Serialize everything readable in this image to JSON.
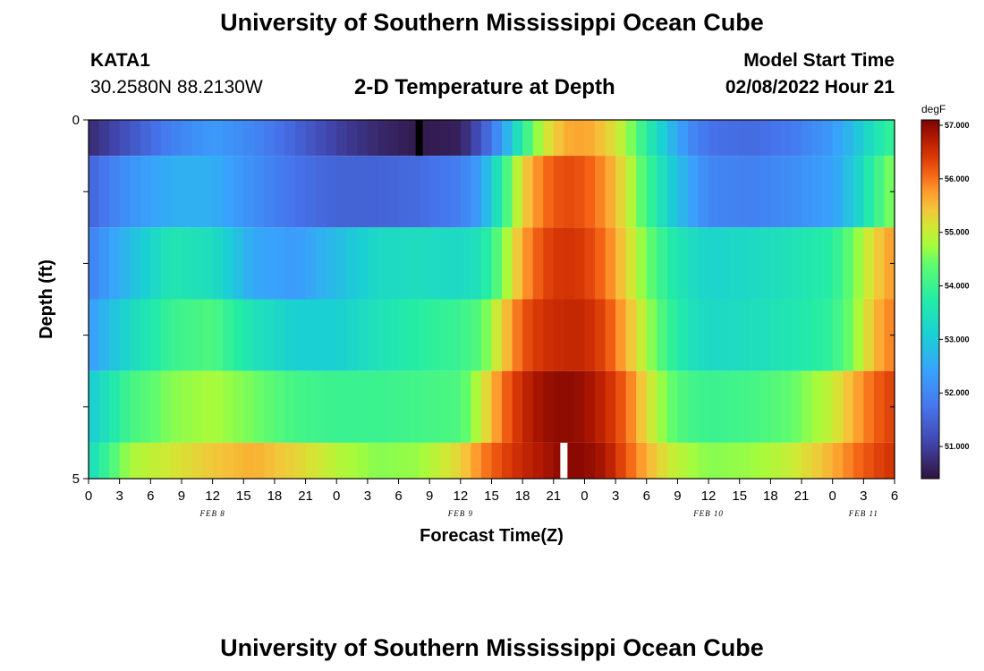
{
  "header": {
    "title": "University of Southern Mississippi Ocean Cube",
    "station": "KATA1",
    "coords": "30.2580N  88.2130W",
    "subtitle": "2-D Temperature at Depth",
    "model_label": "Model Start Time",
    "model_date": "02/08/2022 Hour 21"
  },
  "footer": {
    "title": "University of Southern Mississippi Ocean Cube"
  },
  "chart_data": {
    "type": "heatmap",
    "title": "2-D Temperature at Depth",
    "xlabel": "Forecast Time(Z)",
    "ylabel": "Depth (ft)",
    "x_range_hours": [
      0,
      78
    ],
    "x_tick_labels": [
      "0",
      "3",
      "6",
      "9",
      "12",
      "15",
      "18",
      "21",
      "0",
      "3",
      "6",
      "9",
      "12",
      "15",
      "18",
      "21",
      "0",
      "3",
      "6",
      "9",
      "12",
      "15",
      "18",
      "21",
      "0",
      "3",
      "6"
    ],
    "date_labels": [
      {
        "label": "FEB 8",
        "hour": 12
      },
      {
        "label": "FEB 9",
        "hour": 36
      },
      {
        "label": "FEB 10",
        "hour": 60
      },
      {
        "label": "FEB 11",
        "hour": 75
      }
    ],
    "y_tick_labels": [
      "0",
      "5"
    ],
    "depth_range_ft": [
      0,
      5
    ],
    "colorbar": {
      "unit": "degF",
      "min": 50.4,
      "max": 57.1,
      "tick_values": [
        51,
        52,
        53,
        54,
        55,
        56,
        57
      ],
      "tick_labels": [
        "51.000",
        "52.000",
        "53.000",
        "54.000",
        "55.000",
        "56.000",
        "57.000"
      ]
    },
    "layers": [
      {
        "depth_top": 0.0,
        "depth_bottom": 0.5,
        "temps": [
          [
            0,
            50.7
          ],
          [
            4,
            51.3
          ],
          [
            8,
            51.9
          ],
          [
            12,
            52.3
          ],
          [
            16,
            52.0
          ],
          [
            20,
            51.5
          ],
          [
            24,
            51.0
          ],
          [
            28,
            50.7
          ],
          [
            32,
            50.5
          ],
          [
            36,
            50.6
          ],
          [
            38,
            51.3
          ],
          [
            40,
            52.3
          ],
          [
            42,
            53.8
          ],
          [
            44,
            55.0
          ],
          [
            46,
            55.6
          ],
          [
            48,
            55.7
          ],
          [
            50,
            55.4
          ],
          [
            52,
            54.8
          ],
          [
            54,
            53.8
          ],
          [
            56,
            52.9
          ],
          [
            58,
            52.1
          ],
          [
            60,
            51.7
          ],
          [
            64,
            51.6
          ],
          [
            68,
            51.8
          ],
          [
            72,
            52.3
          ],
          [
            74,
            52.8
          ],
          [
            76,
            53.5
          ],
          [
            78,
            54.0
          ]
        ]
      },
      {
        "depth_top": 0.5,
        "depth_bottom": 1.5,
        "temps": [
          [
            0,
            51.5
          ],
          [
            4,
            52.2
          ],
          [
            8,
            52.6
          ],
          [
            12,
            52.6
          ],
          [
            16,
            52.1
          ],
          [
            20,
            51.7
          ],
          [
            24,
            51.5
          ],
          [
            28,
            51.5
          ],
          [
            32,
            51.6
          ],
          [
            36,
            51.9
          ],
          [
            38,
            52.4
          ],
          [
            40,
            53.8
          ],
          [
            42,
            55.3
          ],
          [
            44,
            56.0
          ],
          [
            46,
            56.3
          ],
          [
            48,
            56.2
          ],
          [
            50,
            55.8
          ],
          [
            52,
            55.1
          ],
          [
            54,
            54.1
          ],
          [
            56,
            53.2
          ],
          [
            58,
            52.5
          ],
          [
            60,
            52.0
          ],
          [
            64,
            51.9
          ],
          [
            68,
            52.1
          ],
          [
            72,
            52.4
          ],
          [
            74,
            53.0
          ],
          [
            76,
            53.9
          ],
          [
            78,
            54.7
          ]
        ]
      },
      {
        "depth_top": 1.5,
        "depth_bottom": 2.5,
        "temps": [
          [
            0,
            51.9
          ],
          [
            4,
            52.8
          ],
          [
            8,
            53.6
          ],
          [
            12,
            53.4
          ],
          [
            16,
            52.5
          ],
          [
            20,
            52.3
          ],
          [
            24,
            52.8
          ],
          [
            28,
            53.3
          ],
          [
            32,
            53.4
          ],
          [
            36,
            53.3
          ],
          [
            38,
            53.5
          ],
          [
            40,
            54.5
          ],
          [
            42,
            55.7
          ],
          [
            44,
            56.3
          ],
          [
            46,
            56.5
          ],
          [
            48,
            56.4
          ],
          [
            50,
            56.0
          ],
          [
            52,
            55.3
          ],
          [
            54,
            54.5
          ],
          [
            56,
            53.8
          ],
          [
            58,
            53.4
          ],
          [
            60,
            53.2
          ],
          [
            64,
            53.3
          ],
          [
            68,
            53.5
          ],
          [
            72,
            53.8
          ],
          [
            74,
            54.5
          ],
          [
            76,
            55.3
          ],
          [
            78,
            55.8
          ]
        ]
      },
      {
        "depth_top": 2.5,
        "depth_bottom": 3.5,
        "temps": [
          [
            0,
            52.3
          ],
          [
            4,
            53.3
          ],
          [
            8,
            54.0
          ],
          [
            12,
            54.2
          ],
          [
            16,
            53.5
          ],
          [
            20,
            53.1
          ],
          [
            24,
            53.1
          ],
          [
            28,
            53.5
          ],
          [
            32,
            53.8
          ],
          [
            36,
            54.0
          ],
          [
            38,
            54.3
          ],
          [
            40,
            55.3
          ],
          [
            42,
            56.2
          ],
          [
            44,
            56.5
          ],
          [
            46,
            56.6
          ],
          [
            48,
            56.6
          ],
          [
            50,
            56.3
          ],
          [
            52,
            55.6
          ],
          [
            54,
            54.8
          ],
          [
            56,
            54.0
          ],
          [
            58,
            53.5
          ],
          [
            60,
            53.3
          ],
          [
            64,
            53.4
          ],
          [
            68,
            53.6
          ],
          [
            72,
            53.9
          ],
          [
            74,
            54.6
          ],
          [
            76,
            55.5
          ],
          [
            78,
            56.0
          ]
        ]
      },
      {
        "depth_top": 3.5,
        "depth_bottom": 4.5,
        "temps": [
          [
            0,
            53.0
          ],
          [
            4,
            54.1
          ],
          [
            8,
            54.6
          ],
          [
            12,
            54.8
          ],
          [
            16,
            54.5
          ],
          [
            20,
            54.1
          ],
          [
            24,
            54.0
          ],
          [
            28,
            54.0
          ],
          [
            32,
            54.1
          ],
          [
            36,
            54.2
          ],
          [
            38,
            55.0
          ],
          [
            40,
            56.0
          ],
          [
            42,
            56.6
          ],
          [
            44,
            56.9
          ],
          [
            46,
            57.0
          ],
          [
            48,
            56.9
          ],
          [
            50,
            56.6
          ],
          [
            52,
            56.1
          ],
          [
            54,
            55.2
          ],
          [
            56,
            54.5
          ],
          [
            58,
            54.1
          ],
          [
            60,
            54.0
          ],
          [
            64,
            54.1
          ],
          [
            68,
            54.4
          ],
          [
            72,
            55.0
          ],
          [
            74,
            55.6
          ],
          [
            76,
            56.1
          ],
          [
            78,
            56.4
          ]
        ]
      },
      {
        "depth_top": 4.5,
        "depth_bottom": 5.0,
        "temps": [
          [
            0,
            53.3
          ],
          [
            2,
            54.1
          ],
          [
            4,
            54.8
          ],
          [
            8,
            55.1
          ],
          [
            12,
            55.4
          ],
          [
            16,
            55.6
          ],
          [
            20,
            55.3
          ],
          [
            24,
            54.9
          ],
          [
            28,
            54.6
          ],
          [
            32,
            54.7
          ],
          [
            36,
            55.3
          ],
          [
            38,
            55.9
          ],
          [
            40,
            56.3
          ],
          [
            42,
            56.6
          ],
          [
            44,
            56.8
          ],
          [
            46,
            57.0
          ],
          [
            48,
            57.0
          ],
          [
            50,
            56.8
          ],
          [
            52,
            56.2
          ],
          [
            54,
            55.6
          ],
          [
            56,
            55.1
          ],
          [
            58,
            54.8
          ],
          [
            60,
            54.6
          ],
          [
            64,
            54.7
          ],
          [
            68,
            55.0
          ],
          [
            72,
            55.6
          ],
          [
            74,
            56.0
          ],
          [
            76,
            56.3
          ],
          [
            78,
            56.5
          ]
        ]
      }
    ],
    "markers": [
      {
        "layer": 0,
        "hour": 32,
        "color": "#000000"
      },
      {
        "layer": 5,
        "hour": 46,
        "color": "#ffffff"
      }
    ]
  }
}
